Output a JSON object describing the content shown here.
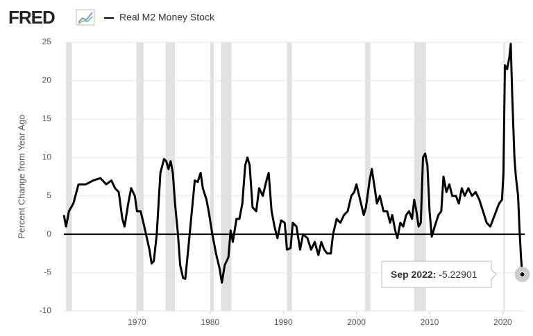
{
  "logo": "FRED",
  "chart_data": {
    "type": "line",
    "ylabel": "Percent Change from Year Ago",
    "xlim": [
      1960,
      2023
    ],
    "ylim": [
      -10,
      25
    ],
    "xticks": [
      1970,
      1980,
      1990,
      2000,
      2010,
      2020
    ],
    "yticks": [
      -10,
      -5,
      0,
      5,
      10,
      15,
      20,
      25
    ],
    "grid": true,
    "baseline": 0,
    "legend": "top-left",
    "recessions": [
      [
        1960.3,
        1961.1
      ],
      [
        1969.9,
        1970.9
      ],
      [
        1973.9,
        1975.2
      ],
      [
        1980.0,
        1980.5
      ],
      [
        1981.5,
        1982.9
      ],
      [
        1990.5,
        1991.2
      ],
      [
        2001.2,
        2001.9
      ],
      [
        2007.9,
        2009.5
      ],
      [
        2020.1,
        2020.3
      ]
    ],
    "recession_color": "#e1e1e1",
    "x": [
      1960.0,
      1960.3,
      1960.7,
      1961.3,
      1962,
      1963,
      1964,
      1965,
      1965.8,
      1966.5,
      1967,
      1967.5,
      1968,
      1968.3,
      1968.8,
      1969.2,
      1969.7,
      1970,
      1970.5,
      1971,
      1971.7,
      1972,
      1972.3,
      1972.7,
      1973.2,
      1973.7,
      1974,
      1974.3,
      1974.6,
      1974.9,
      1975.2,
      1975.6,
      1975.9,
      1976.3,
      1976.6,
      1977,
      1977.5,
      1977.9,
      1978.3,
      1978.7,
      1979,
      1979.5,
      1979.8,
      1980.3,
      1980.8,
      1981.3,
      1981.6,
      1982,
      1982.5,
      1982.8,
      1983.1,
      1983.6,
      1984,
      1984.4,
      1984.8,
      1985.1,
      1985.4,
      1985.8,
      1986.3,
      1986.7,
      1987.2,
      1987.7,
      1988,
      1988.4,
      1988.8,
      1989.2,
      1989.7,
      1990.2,
      1990.5,
      1991,
      1991.3,
      1991.8,
      1992.3,
      1992.7,
      1993.3,
      1993.8,
      1994.3,
      1994.8,
      1995.2,
      1995.6,
      1996,
      1996.5,
      1996.8,
      1997.3,
      1997.8,
      1998.3,
      1998.8,
      1999.3,
      1999.7,
      2000,
      2000.5,
      2001,
      2001.3,
      2001.8,
      2002.1,
      2002.5,
      2002.8,
      2003.2,
      2003.7,
      2004.2,
      2004.6,
      2004.9,
      2005.3,
      2005.6,
      2006,
      2006.4,
      2006.8,
      2007.2,
      2007.6,
      2007.9,
      2008.2,
      2008.5,
      2008.8,
      2009.1,
      2009.4,
      2009.7,
      2010,
      2010.3,
      2010.7,
      2011.2,
      2011.6,
      2011.9,
      2012.3,
      2012.7,
      2013.1,
      2013.6,
      2014,
      2014.4,
      2014.8,
      2015.3,
      2015.8,
      2016.3,
      2016.8,
      2017.3,
      2017.8,
      2018.3,
      2018.7,
      2019.1,
      2019.5,
      2019.9,
      2020.1,
      2020.3,
      2020.6,
      2020.9,
      2021.1,
      2021.3,
      2021.6,
      2021.8,
      2022.1,
      2022.3,
      2022.5,
      2022.67
    ],
    "series": [
      {
        "name": "Real M2 Money Stock",
        "color": "#000000",
        "values": [
          2.5,
          1,
          3,
          4,
          6.5,
          6.5,
          7,
          7.3,
          6.5,
          7,
          6,
          5.5,
          2,
          1,
          4,
          6,
          5,
          3,
          3,
          1,
          -2,
          -3.8,
          -3.5,
          0,
          8,
          9.8,
          9.5,
          8.5,
          9.5,
          8,
          4,
          0,
          -4,
          -5.7,
          -5.8,
          -2,
          3,
          7,
          6.8,
          8,
          6,
          4.5,
          3,
          0,
          -2.5,
          -4.5,
          -6.3,
          -4,
          -3,
          0.5,
          -1,
          2,
          2,
          4,
          9,
          10,
          9,
          3.5,
          3,
          6,
          5,
          7,
          8,
          3,
          1,
          -0.5,
          1.8,
          1.5,
          -2,
          -1.8,
          1.5,
          1,
          -2,
          0,
          -0.5,
          -2,
          -1,
          -2.7,
          -1,
          -2,
          -2.5,
          -2.5,
          0,
          2,
          1.5,
          2.5,
          3,
          5,
          5.5,
          6.5,
          4.5,
          2.5,
          3.5,
          7,
          8.5,
          6,
          4,
          5,
          3,
          3,
          1.5,
          2.5,
          0.5,
          -0.5,
          1.5,
          1,
          2.5,
          3,
          2,
          4.5,
          3,
          1,
          1.5,
          10,
          10.5,
          9,
          3,
          -0.3,
          1,
          2.5,
          3,
          7.5,
          5.5,
          6.5,
          5,
          5,
          4,
          6,
          5,
          6,
          5,
          5.5,
          4.5,
          3,
          1.5,
          1,
          2,
          3,
          4,
          4.5,
          8,
          22,
          21.5,
          23,
          24.8,
          18,
          10,
          7.5,
          5,
          0.5,
          -3,
          -5.22901
        ]
      }
    ],
    "tooltip": {
      "label": "Sep 2022:",
      "value": -5.22901
    }
  }
}
